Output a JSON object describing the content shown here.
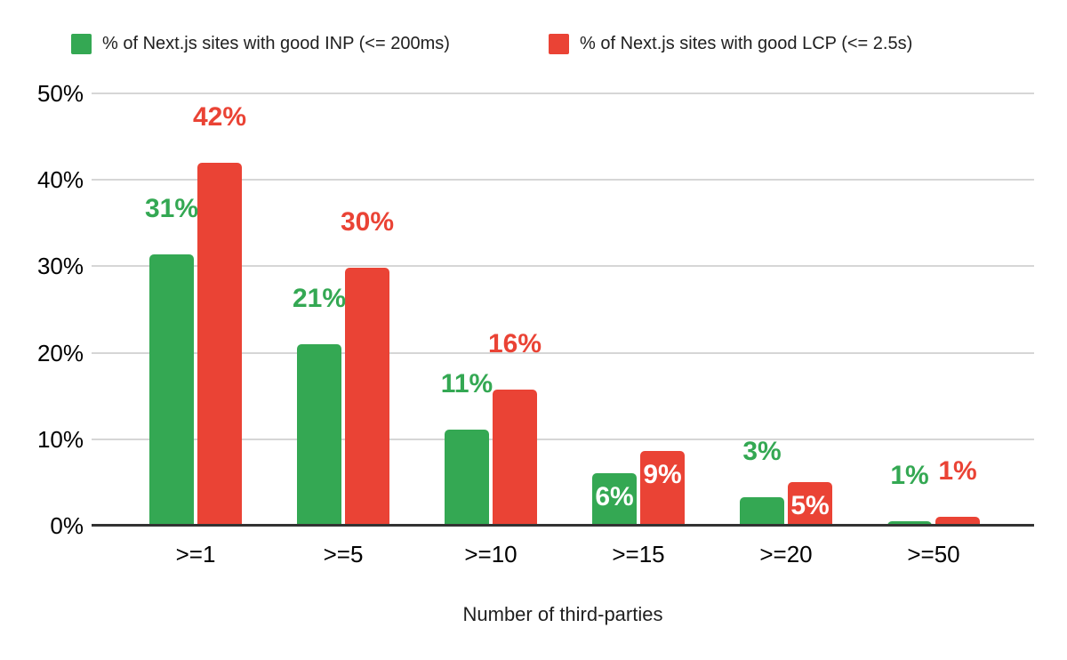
{
  "chart_data": {
    "type": "bar",
    "title": "",
    "xlabel": "Number of third-parties",
    "ylabel": "",
    "categories": [
      ">=1",
      ">=5",
      ">=10",
      ">=15",
      ">=20",
      ">=50"
    ],
    "series": [
      {
        "name": "% of Next.js sites with good INP (<= 200ms)",
        "color": "#34a853",
        "values": [
          31.4,
          21.0,
          11.1,
          6.1,
          3.3,
          0.5
        ],
        "labels": [
          "31%",
          "21%",
          "11%",
          "6%",
          "3%",
          "1%"
        ],
        "label_positions": [
          "above",
          "above",
          "above",
          "inside",
          "above",
          "above"
        ]
      },
      {
        "name": "% of Next.js sites with good LCP (<= 2.5s)",
        "color": "#ea4335",
        "values": [
          42.0,
          29.8,
          15.7,
          8.6,
          5.0,
          1.0
        ],
        "labels": [
          "42%",
          "30%",
          "16%",
          "9%",
          "5%",
          "1%"
        ],
        "label_positions": [
          "above",
          "above",
          "above",
          "inside",
          "inside",
          "above"
        ]
      }
    ],
    "y_axis": {
      "min": 0,
      "max": 50,
      "ticks": [
        {
          "value": 50,
          "label": "50%"
        },
        {
          "value": 40,
          "label": "40%"
        },
        {
          "value": 30,
          "label": "30%"
        },
        {
          "value": 20,
          "label": "20%"
        },
        {
          "value": 10,
          "label": "10%"
        },
        {
          "value": 0,
          "label": "0%"
        }
      ]
    },
    "grid": true,
    "legend_position": "top",
    "inside_label_color": "#ffffff"
  },
  "colors": {
    "background": "#ffffff",
    "grid_line": "#d6d6d6",
    "axis_line": "#333333",
    "axis_text": "#000000",
    "legend_text": "#202020"
  }
}
